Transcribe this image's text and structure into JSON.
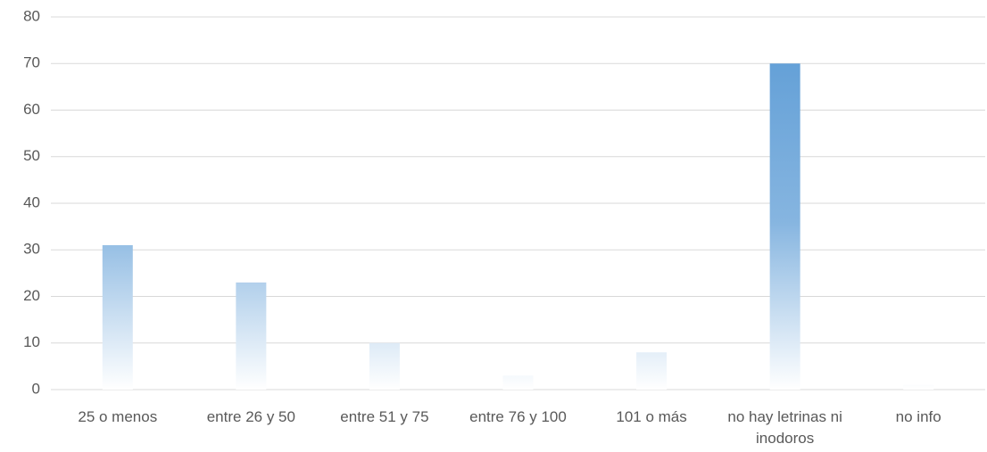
{
  "chart_data": {
    "type": "bar",
    "categories": [
      "25 o menos",
      "entre 26 y 50",
      "entre 51 y 75",
      "entre 76 y 100",
      "101 o más",
      "no hay letrinas ni inodoros",
      "no info"
    ],
    "values": [
      31,
      23,
      10,
      3,
      8,
      70,
      1
    ],
    "color": "#5b9bd5",
    "ylim": [
      0,
      80
    ],
    "yticks": [
      0,
      10,
      20,
      30,
      40,
      50,
      60,
      70,
      80
    ],
    "grid": true
  }
}
